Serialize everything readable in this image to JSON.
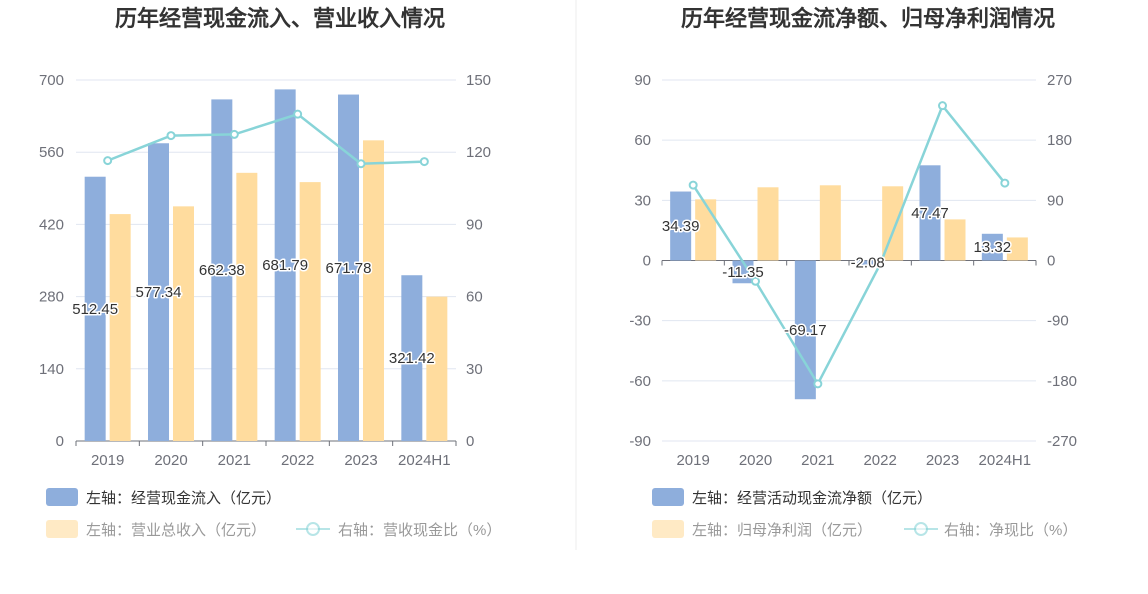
{
  "chart_data": [
    {
      "type": "bar",
      "title": "历年经营现金流入、营业收入情况",
      "categories": [
        "2019",
        "2020",
        "2021",
        "2022",
        "2023",
        "2024H1"
      ],
      "left_axis": {
        "ylim": [
          0,
          700
        ],
        "ticks": [
          "0",
          "140",
          "280",
          "420",
          "560",
          "700"
        ]
      },
      "right_axis": {
        "ylim": [
          0,
          150
        ],
        "ticks": [
          "0",
          "30",
          "60",
          "90",
          "120",
          "150"
        ]
      },
      "series": [
        {
          "name": "左轴：经营现金流入（亿元）",
          "kind": "bar",
          "axis": "left",
          "color": "#8eaedc",
          "values": [
            512.45,
            577.34,
            662.38,
            681.79,
            671.78,
            321.42
          ],
          "labels": [
            "512.45",
            "577.34",
            "662.38",
            "681.79",
            "671.78",
            "321.42"
          ]
        },
        {
          "name": "左轴：营业总收入（亿元）",
          "kind": "bar",
          "axis": "left",
          "color": "#ffdc9e",
          "values": [
            440,
            455,
            520,
            502,
            583,
            280
          ]
        },
        {
          "name": "右轴：营收现金比（%）",
          "kind": "line",
          "axis": "right",
          "color": "#88d4d8",
          "values": [
            116.5,
            126.9,
            127.4,
            135.8,
            115.2,
            116.1
          ]
        }
      ],
      "legend": "bottom"
    },
    {
      "type": "bar",
      "title": "历年经营现金流净额、归母净利润情况",
      "categories": [
        "2019",
        "2020",
        "2021",
        "2022",
        "2023",
        "2024H1"
      ],
      "left_axis": {
        "ylim": [
          -90,
          90
        ],
        "ticks": [
          "-90",
          "-60",
          "-30",
          "0",
          "30",
          "60",
          "90"
        ]
      },
      "right_axis": {
        "ylim": [
          -270,
          270
        ],
        "ticks": [
          "-270",
          "-180",
          "-90",
          "0",
          "90",
          "180",
          "270"
        ]
      },
      "series": [
        {
          "name": "左轴：经营活动现金流净额（亿元）",
          "kind": "bar",
          "axis": "left",
          "color": "#8eaedc",
          "values": [
            34.39,
            -11.35,
            -69.17,
            -2.08,
            47.47,
            13.32
          ],
          "labels": [
            "34.39",
            "-11.35",
            "-69.17",
            "-2.08",
            "47.47",
            "13.32"
          ]
        },
        {
          "name": "左轴：归母净利润（亿元）",
          "kind": "bar",
          "axis": "left",
          "color": "#ffdc9e",
          "values": [
            30.5,
            36.5,
            37.5,
            37,
            20.5,
            11.5
          ]
        },
        {
          "name": "右轴：净现比（%）",
          "kind": "line",
          "axis": "right",
          "color": "#88d4d8",
          "values": [
            112.8,
            -31.1,
            -184.5,
            -5.6,
            231.6,
            115.8
          ]
        }
      ],
      "legend": "bottom"
    }
  ]
}
